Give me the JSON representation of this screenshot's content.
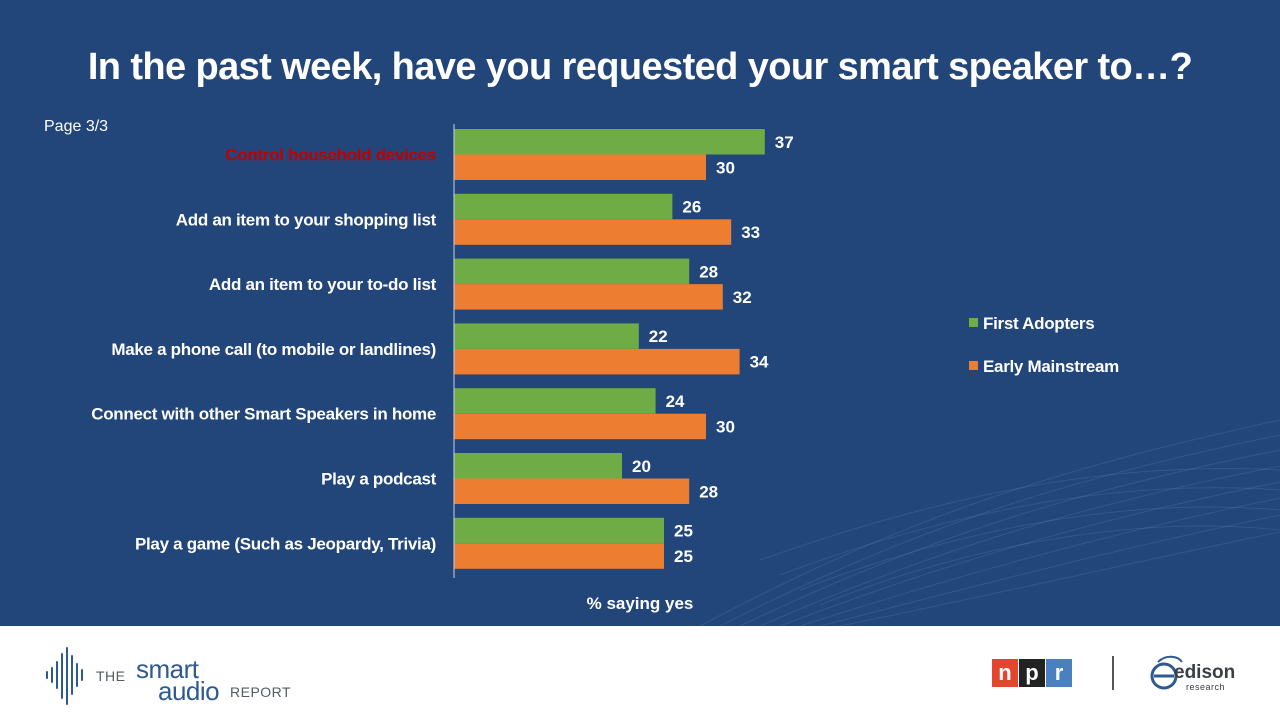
{
  "title": "In the past week, have you requested your smart speaker to…?",
  "page_label": "Page 3/3",
  "colors": {
    "background": "#22457a",
    "first_adopters": "#6fac46",
    "early_mainstream": "#ed7d31",
    "highlight": "#c00000"
  },
  "chart_data": {
    "type": "bar",
    "orientation": "horizontal",
    "categories": [
      "Control household devices",
      "Add an item to your shopping list",
      "Add an item to your to-do list",
      "Make a phone call (to mobile or landlines)",
      "Connect with other Smart Speakers in home",
      "Play a podcast",
      "Play a game (Such as Jeopardy, Trivia)"
    ],
    "highlighted_category": "Control household devices",
    "series": [
      {
        "name": "First Adopters",
        "color": "#6fac46",
        "values": [
          37,
          26,
          28,
          22,
          24,
          20,
          25
        ]
      },
      {
        "name": "Early Mainstream",
        "color": "#ed7d31",
        "values": [
          30,
          33,
          32,
          34,
          30,
          28,
          25
        ]
      }
    ],
    "xlabel": "% saying yes",
    "xlim": [
      0,
      100
    ],
    "data_labels": true,
    "grid": false,
    "legend_position": "right"
  },
  "footer": {
    "sar": {
      "the": "THE",
      "smart": "smart",
      "audio": "audio",
      "report": "REPORT"
    },
    "npr": [
      "n",
      "p",
      "r"
    ],
    "edison": {
      "name": "edison",
      "sub": "research"
    }
  }
}
